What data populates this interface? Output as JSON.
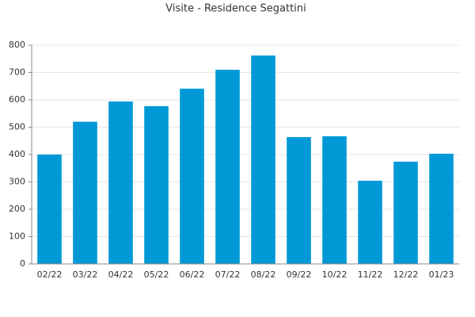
{
  "chart_data": {
    "type": "bar",
    "title": "Visite - Residence Segattini",
    "categories": [
      "02/22",
      "03/22",
      "04/22",
      "05/22",
      "06/22",
      "07/22",
      "08/22",
      "09/22",
      "10/22",
      "11/22",
      "12/22",
      "01/23"
    ],
    "values": [
      400,
      520,
      594,
      577,
      641,
      710,
      762,
      464,
      467,
      304,
      374,
      403
    ],
    "color": "#0099d6",
    "ylim": [
      0,
      800
    ],
    "yticks": [
      0,
      100,
      200,
      300,
      400,
      500,
      600,
      700,
      800
    ],
    "grid": true
  }
}
